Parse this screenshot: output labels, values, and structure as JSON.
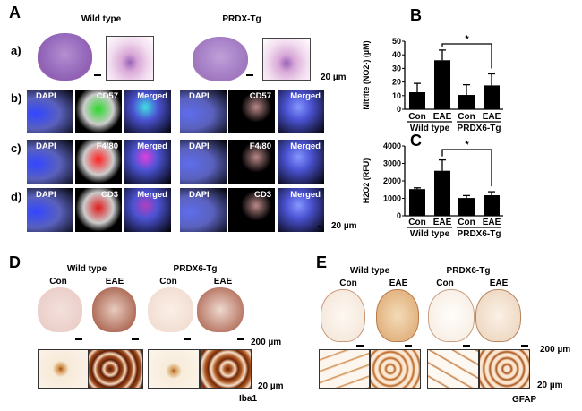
{
  "panel_a": {
    "letter": "A",
    "groups": [
      "Wild type",
      "PRDX-Tg"
    ],
    "rows": [
      "a)",
      "b)",
      "c)",
      "d)"
    ],
    "channels": {
      "b": [
        "DAPI",
        "CD57",
        "Merged"
      ],
      "c": [
        "DAPI",
        "F4/80",
        "Merged"
      ],
      "d": [
        "DAPI",
        "CD3",
        "Merged"
      ]
    },
    "scale_a": "20 µm",
    "scale_d": "20 µm"
  },
  "panel_b": {
    "letter": "B"
  },
  "panel_c": {
    "letter": "C"
  },
  "panel_d": {
    "letter": "D",
    "groups": [
      "Wild type",
      "PRDX6-Tg"
    ],
    "conditions": [
      "Con",
      "EAE",
      "Con",
      "EAE"
    ],
    "scale_low": "200 µm",
    "scale_high": "20 µm",
    "stain": "Iba1"
  },
  "panel_e": {
    "letter": "E",
    "groups": [
      "Wild type",
      "PRDX6-Tg"
    ],
    "conditions": [
      "Con",
      "EAE",
      "Con",
      "EAE"
    ],
    "scale_low": "200 µm",
    "scale_high": "20 µm",
    "stain": "GFAP"
  },
  "chart_data": [
    {
      "type": "bar",
      "panel": "B",
      "ylabel": "Nitrite (NO2-) (µM)",
      "ylim": [
        0,
        50
      ],
      "yticks": [
        "0",
        "10",
        "20",
        "30",
        "40",
        "50"
      ],
      "categories": [
        "Con",
        "EAE",
        "Con",
        "EAE"
      ],
      "groups": [
        "Wild type",
        "PRDX6-Tg"
      ],
      "values": [
        12.5,
        36,
        10.5,
        17.5
      ],
      "errors": [
        6.5,
        7.5,
        7.5,
        8.5
      ],
      "significance": {
        "between": [
          1,
          3
        ],
        "label": "*"
      },
      "bar_color": "#000000"
    },
    {
      "type": "bar",
      "panel": "C",
      "ylabel": "H2O2 (RFU)",
      "ylim": [
        0,
        4000
      ],
      "yticks": [
        "0",
        "1000",
        "2000",
        "3000",
        "4000"
      ],
      "categories": [
        "Con",
        "EAE",
        "Con",
        "EAE"
      ],
      "groups": [
        "Wild type",
        "PRDX6-Tg"
      ],
      "values": [
        1530,
        2580,
        1020,
        1180
      ],
      "errors": [
        70,
        620,
        140,
        200
      ],
      "significance": {
        "between": [
          1,
          3
        ],
        "label": "*"
      },
      "bar_color": "#000000"
    }
  ]
}
